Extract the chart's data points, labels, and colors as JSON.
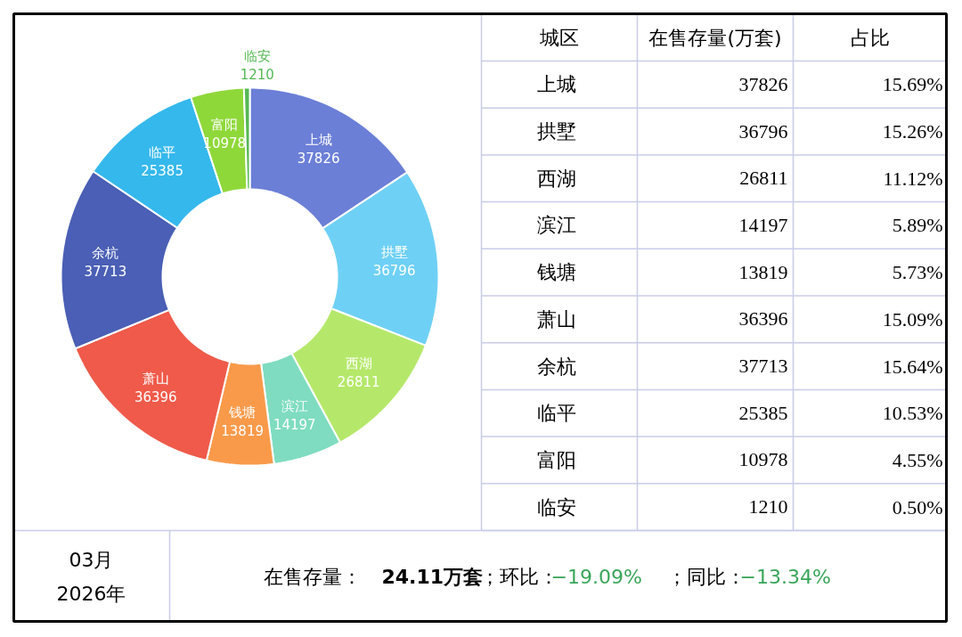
{
  "chart_data": {
    "type": "donut",
    "categories": [
      "上城",
      "拱墅",
      "西湖",
      "滨江",
      "钱塘",
      "萧山",
      "余杭",
      "临平",
      "富阳",
      "临安"
    ],
    "values": [
      37826,
      36796,
      26811,
      14197,
      13819,
      36396,
      37713,
      25385,
      10978,
      1210
    ],
    "colors": [
      "#6b7fd7",
      "#6fd0f5",
      "#b5e86a",
      "#7fdcc0",
      "#f99a4a",
      "#ef5a4a",
      "#4a5fb5",
      "#35b8ec",
      "#8fd83a",
      "#55b855"
    ],
    "data_labels": true,
    "annotations": [
      "城区",
      "在售存量(万套)",
      "占比",
      "37826",
      "36796",
      "26811",
      "14197",
      "13819",
      "36396",
      "37713",
      "25385",
      "10978",
      "1210",
      "15.69%",
      "15.26%",
      "11.12%",
      "5.89%",
      "5.73%",
      "15.09%",
      "15.64%",
      "10.53%",
      "4.55%",
      "0.50%",
      "03月",
      "2026年",
      "在售存量：",
      "24.11万套",
      "；环比：",
      "−19.09%",
      "；同比：",
      "−13.34%"
    ]
  }
}
